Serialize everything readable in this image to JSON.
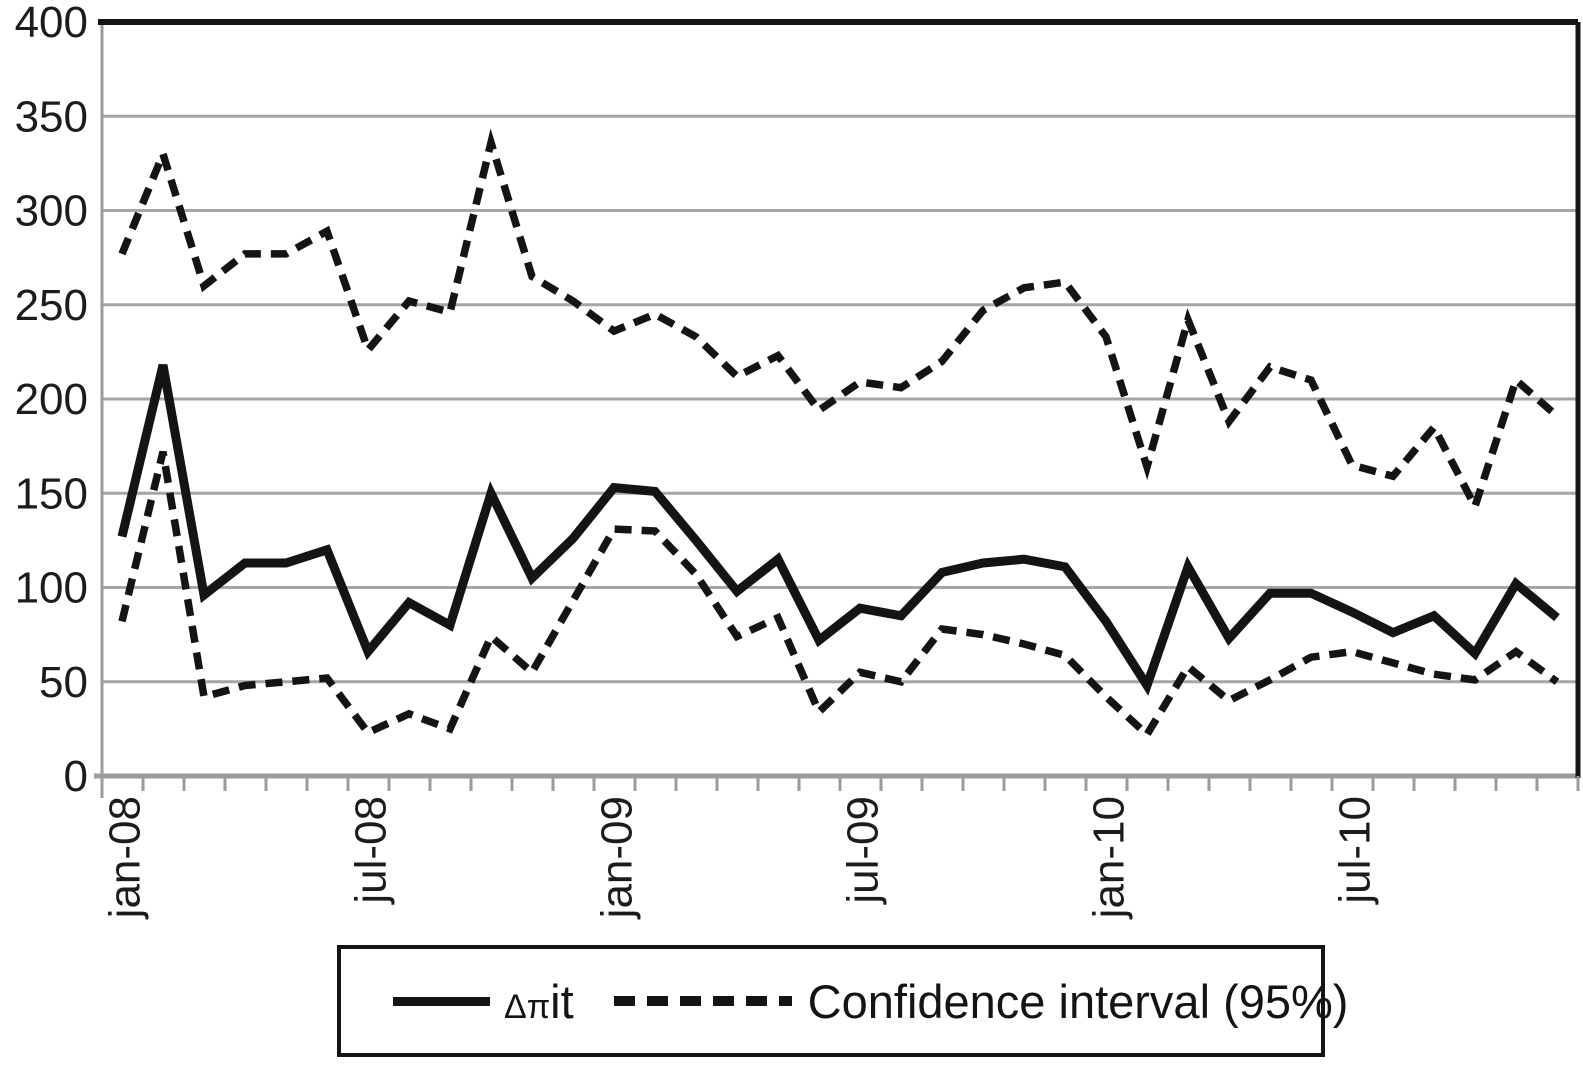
{
  "legend": {
    "series1_prefix": "Δπ",
    "series1_suffix": "it",
    "series2_label": "Confidence interval (95%)"
  },
  "colors": {
    "line": "#141414",
    "grid": "#a6a6a6",
    "axis": "#9b9b9b",
    "background": "#ffffff",
    "text": "#1c1c1c"
  },
  "chart_data": {
    "type": "line",
    "n_points": 36,
    "x_tick_labels": [
      "jan-08",
      "jul-08",
      "jan-09",
      "jul-09",
      "jan-10",
      "jul-10"
    ],
    "x_tick_positions": [
      0,
      6,
      12,
      18,
      24,
      30
    ],
    "y_tick_labels": [
      "400",
      "350",
      "300",
      "250",
      "200",
      "150",
      "100",
      "50",
      "0"
    ],
    "y_tick_values": [
      400,
      350,
      300,
      250,
      200,
      150,
      100,
      50,
      0
    ],
    "ylim": [
      0,
      400
    ],
    "grid": true,
    "legend_position": "bottom",
    "series": [
      {
        "name": "Confidence interval (95%) upper bound",
        "style": "dashed",
        "values": [
          277,
          330,
          260,
          277,
          277,
          289,
          226,
          252,
          246,
          336,
          265,
          252,
          236,
          245,
          233,
          212,
          223,
          194,
          209,
          206,
          220,
          247,
          259,
          262,
          233,
          164,
          242,
          188,
          217,
          210,
          165,
          159,
          185,
          143,
          210,
          191
        ]
      },
      {
        "name": "Confidence interval (95%) lower bound",
        "style": "dashed",
        "values": [
          82,
          172,
          42,
          48,
          50,
          52,
          23,
          33,
          25,
          74,
          55,
          93,
          131,
          130,
          107,
          74,
          84,
          34,
          55,
          50,
          78,
          75,
          70,
          64,
          42,
          22,
          58,
          40,
          51,
          63,
          66,
          60,
          54,
          51,
          66,
          50
        ]
      },
      {
        "name": "Δπit",
        "style": "solid",
        "values": [
          127,
          218,
          96,
          113,
          113,
          120,
          66,
          92,
          80,
          150,
          105,
          126,
          153,
          151,
          125,
          98,
          115,
          72,
          89,
          85,
          108,
          113,
          115,
          111,
          82,
          48,
          111,
          73,
          97,
          97,
          87,
          76,
          85,
          65,
          102,
          84
        ]
      }
    ]
  }
}
